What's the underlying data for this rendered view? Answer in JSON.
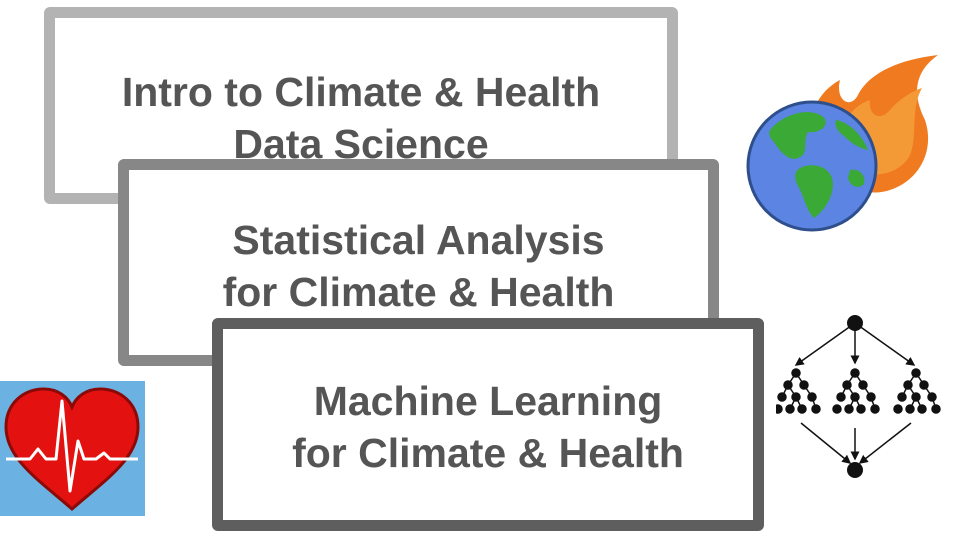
{
  "cards": [
    {
      "line1": "Intro to Climate & Health",
      "line2": "Data Science"
    },
    {
      "line1": "Statistical Analysis",
      "line2": "for Climate & Health"
    },
    {
      "line1": "Machine Learning",
      "line2": "for Climate & Health"
    }
  ],
  "icons": {
    "globe": "globe-on-fire-icon",
    "heart": "heart-pulse-icon",
    "tree": "ensemble-decision-tree-icon"
  },
  "colors": {
    "card1_border": "#b3b3b3",
    "card2_border": "#878787",
    "card3_border": "#5e5e5e",
    "text": "#555555",
    "heart_red": "#e3110f",
    "heart_bg": "#6bb2e3",
    "ocean": "#5b84e3",
    "land": "#3ba935",
    "flame": "#f07a1f"
  }
}
